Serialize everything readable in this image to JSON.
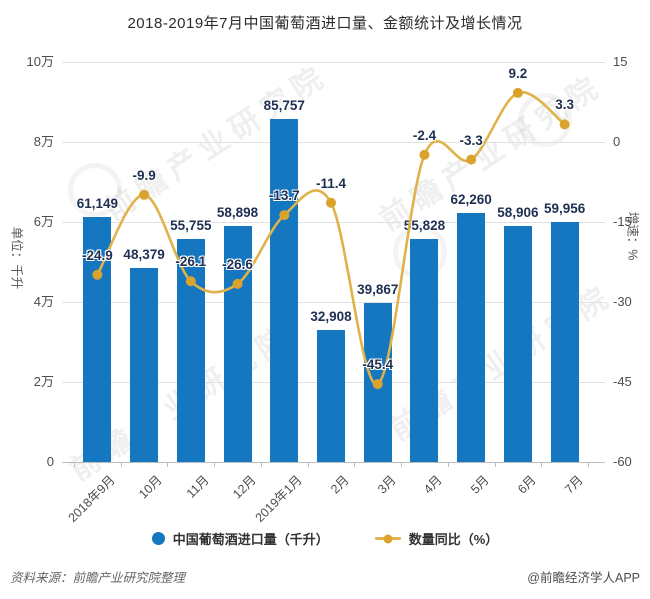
{
  "title": "2018-2019年7月中国葡萄酒进口量、金额统计及增长情况",
  "watermark": {
    "text": "前瞻产业研究院"
  },
  "chart_data": {
    "type": "bar+line",
    "categories": [
      "2018年9月",
      "10月",
      "11月",
      "12月",
      "2019年1月",
      "2月",
      "3月",
      "4月",
      "5月",
      "6月",
      "7月"
    ],
    "series": [
      {
        "name": "中国葡萄酒进口量（千升）",
        "type": "bar",
        "axis": "left",
        "color": "#1577BF",
        "values": [
          61149,
          48379,
          55755,
          58898,
          85757,
          32908,
          39867,
          55828,
          62260,
          58906,
          59956
        ],
        "labels": [
          "61,149",
          "48,379",
          "55,755",
          "58,898",
          "85,757",
          "32,908",
          "39,867",
          "55,828",
          "62,260",
          "58,906",
          "59,956"
        ]
      },
      {
        "name": "数量同比（%）",
        "type": "line",
        "axis": "right",
        "color": "#E0B24A",
        "marker_color": "#D9A32E",
        "values": [
          -24.9,
          -9.9,
          -26.1,
          -26.6,
          -13.7,
          -11.4,
          -45.4,
          -2.4,
          -3.3,
          9.2,
          3.3
        ],
        "labels": [
          "-24.9",
          "-9.9",
          "-26.1",
          "-26.6",
          "-13.7",
          "-11.4",
          "-45.4",
          "-2.4",
          "-3.3",
          "9.2",
          "3.3"
        ]
      }
    ],
    "left_axis": {
      "title": "单位：千升",
      "min": 0,
      "max": 100000,
      "ticks": [
        "10万",
        "8万",
        "6万",
        "4万",
        "2万",
        "0"
      ]
    },
    "right_axis": {
      "title": "增速：%",
      "min": -60,
      "max": 15,
      "ticks": [
        "15",
        "0",
        "-15",
        "-30",
        "-45",
        "-60"
      ]
    },
    "grid": true,
    "legend_position": "bottom"
  },
  "legend": {
    "items": [
      {
        "label": "中国葡萄酒进口量（千升）",
        "color": "#1577BF"
      },
      {
        "label": "数量同比（%）",
        "color": "#E0B24A",
        "marker_color": "#D9A32E"
      }
    ]
  },
  "footer": {
    "source": "资料来源：前瞻产业研究院整理",
    "credit": "@前瞻经济学人APP"
  }
}
